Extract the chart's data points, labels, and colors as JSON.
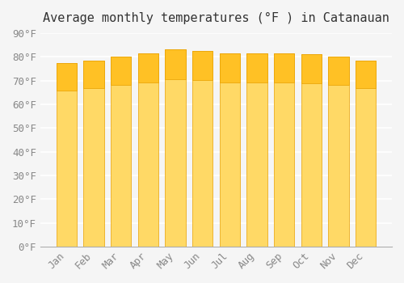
{
  "title": "Average monthly temperatures (°F ) in Catanauan",
  "categories": [
    "Jan",
    "Feb",
    "Mar",
    "Apr",
    "May",
    "Jun",
    "Jul",
    "Aug",
    "Sep",
    "Oct",
    "Nov",
    "Dec"
  ],
  "values": [
    77.5,
    78.5,
    80.0,
    81.5,
    83.0,
    82.5,
    81.5,
    81.5,
    81.5,
    81.0,
    80.0,
    78.5
  ],
  "bar_color_top": "#FFC125",
  "bar_color_bottom": "#FFD966",
  "background_color": "#f5f5f5",
  "grid_color": "#ffffff",
  "ylim": [
    0,
    90
  ],
  "yticks": [
    0,
    10,
    20,
    30,
    40,
    50,
    60,
    70,
    80,
    90
  ],
  "ytick_labels": [
    "0°F",
    "10°F",
    "20°F",
    "30°F",
    "40°F",
    "50°F",
    "60°F",
    "70°F",
    "80°F",
    "90°F"
  ],
  "title_fontsize": 11,
  "tick_fontsize": 9,
  "bar_edge_color": "#E8A000"
}
